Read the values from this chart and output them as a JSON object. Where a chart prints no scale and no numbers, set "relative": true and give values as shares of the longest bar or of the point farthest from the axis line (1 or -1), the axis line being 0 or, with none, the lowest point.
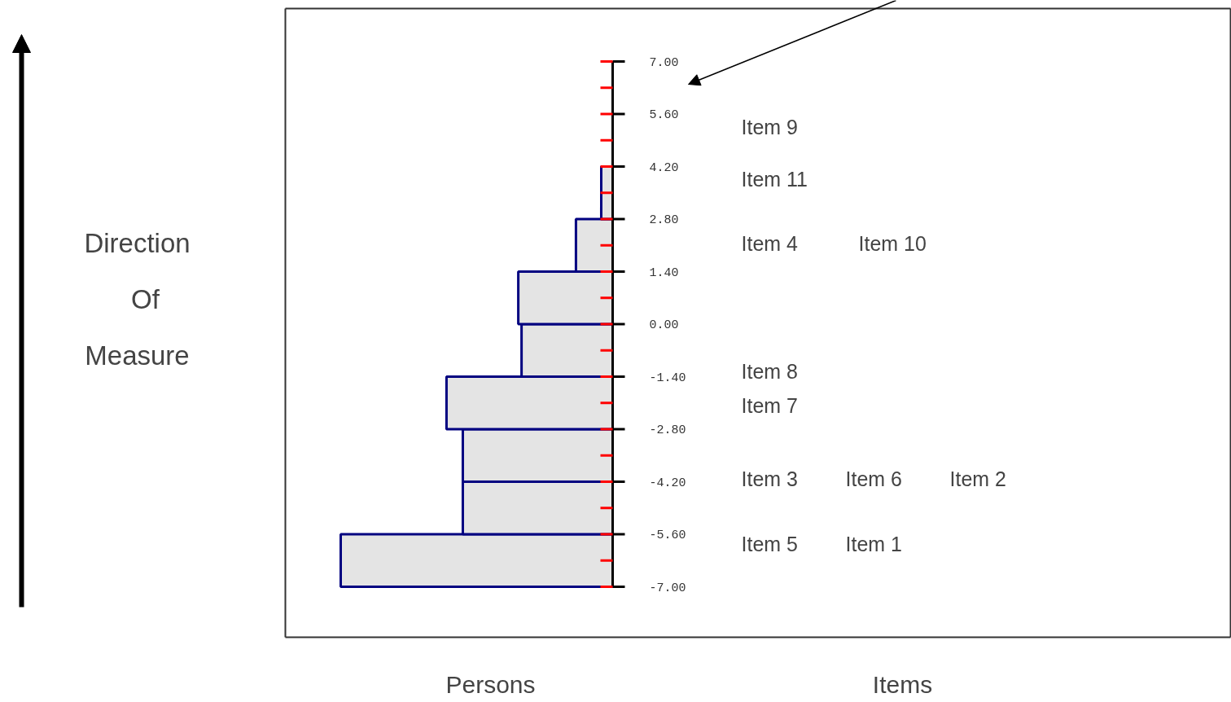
{
  "chart_data": {
    "type": "bar",
    "orientation": "horizontal",
    "relative": true,
    "x": [
      -6.3,
      -4.9,
      -3.5,
      -2.1,
      -0.7,
      0.7,
      2.1,
      3.5,
      4.9,
      6.3
    ],
    "values": [
      -1.0,
      -0.551,
      -0.551,
      -0.611,
      -0.335,
      -0.347,
      -0.135,
      -0.042,
      0,
      0
    ],
    "color": "#000080",
    "ylim": [
      -7,
      7
    ],
    "yticks": [
      {
        "value": -7,
        "label": "-7.00"
      },
      {
        "value": -5.6,
        "label": "-5.60"
      },
      {
        "value": -4.2,
        "label": "-4.20"
      },
      {
        "value": -2.8,
        "label": "-2.80"
      },
      {
        "value": -1.4,
        "label": "-1.40"
      },
      {
        "value": 0,
        "label": "0.00"
      },
      {
        "value": 1.4,
        "label": "1.40"
      },
      {
        "value": 2.8,
        "label": "2.80"
      },
      {
        "value": 4.2,
        "label": "4.20"
      },
      {
        "value": 5.6,
        "label": "5.60"
      },
      {
        "value": 7,
        "label": "7.00"
      }
    ],
    "annotations": [
      "Direction Of Measure",
      "Item 9",
      "Item 11",
      "Item 4",
      "Item 10",
      "Item 8",
      "Item 7",
      "Item 3",
      "Item 6",
      "Item 2",
      "Item 5",
      "Item 1",
      "Persons",
      "Items"
    ]
  }
}
